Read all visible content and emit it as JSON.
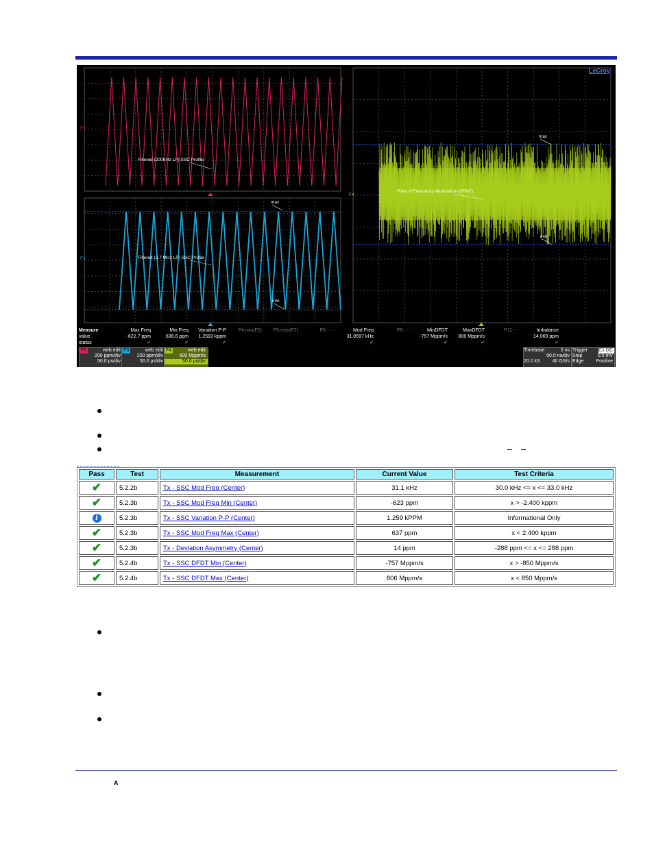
{
  "scope": {
    "brand": "LeCroy",
    "ref_labels": {
      "left_top": "F2",
      "left_bottom": "F3",
      "right": "F4"
    },
    "annotations": {
      "f2_profile": "Filtered (200KHz LP) SSC Profile",
      "f3_profile": "Filtered (3.7 MHz LP) SSC Profile",
      "f3_max": "max",
      "f3_min": "min",
      "f4_rate": "Rate of Frequency Modulation (dFMT)",
      "f4_max": "max",
      "f4_min": "min"
    },
    "measure": {
      "row_labels": [
        "Measure",
        "value",
        "status"
      ],
      "columns": [
        {
          "name": "Max Freq",
          "value": "-622.7 ppm",
          "status": "✔",
          "dim": false
        },
        {
          "name": "Min Freq",
          "value": "636.6 ppm",
          "status": "✔",
          "dim": false
        },
        {
          "name": "Variation P-P",
          "value": "1.2593 kppm",
          "status": "✔",
          "dim": false
        },
        {
          "name": "P4:min(F2)",
          "value": "",
          "status": "",
          "dim": true
        },
        {
          "name": "P5:max(F2)",
          "value": "",
          "status": "",
          "dim": true
        },
        {
          "name": "P6:- - -",
          "value": "",
          "status": "",
          "dim": true
        },
        {
          "name": "Mod Freq",
          "value": "31.0597 kHz",
          "status": "✔",
          "dim": false
        },
        {
          "name": "P8:- - -",
          "value": "",
          "status": "",
          "dim": true
        },
        {
          "name": "MinDFDT",
          "value": "-757 Mppm/s",
          "status": "✔",
          "dim": false
        },
        {
          "name": "MaxDFDT",
          "value": "806 Mppm/s",
          "status": "✔",
          "dim": false
        },
        {
          "name": "P11:- - -",
          "value": "",
          "status": "",
          "dim": true
        },
        {
          "name": "Imbalance",
          "value": "14.069 ppm",
          "status": "✔",
          "dim": false
        }
      ]
    },
    "channels": [
      {
        "tag": "F2",
        "mode": "web edit",
        "scale": "200 ppm/div",
        "time": "50.0 µs/div",
        "color": "#e0245c"
      },
      {
        "tag": "F3",
        "mode": "web edit",
        "scale": "200 ppm/div",
        "time": "50.0 µs/div",
        "color": "#1aa6d9"
      },
      {
        "tag": "F4",
        "mode": "web edit",
        "scale": "500 Mppm/s",
        "time": "50.0 µs/div",
        "color": "#a8cc1c"
      }
    ],
    "timebase": {
      "label": "Timebase",
      "offset": "0 ns",
      "div": "50.0 ns/div",
      "samples": "20.0 kS",
      "rate": "40 GS/s"
    },
    "trigger": {
      "label": "Trigger",
      "source": "C1 DC",
      "mode": "Stop",
      "level": "0.0 mV",
      "type": "Edge",
      "slope": "Positive"
    }
  },
  "table": {
    "headers": [
      "Pass",
      "Test",
      "Measurement",
      "Current Value",
      "Test Criteria"
    ],
    "rows": [
      {
        "pass": "check",
        "test": "5.2.2b",
        "measurement": "Tx - SSC Mod Freq (Center)",
        "value": "31.1 kHz",
        "criteria": "30.0 kHz <= x <= 33.0 kHz"
      },
      {
        "pass": "check",
        "test": "5.2.3b",
        "measurement": "Tx - SSC Mod Freq Min (Center)",
        "value": "-623 ppm",
        "criteria": "x > -2.400 kppm"
      },
      {
        "pass": "info",
        "test": "5.2.3b",
        "measurement": "Tx - SSC Variation P-P (Center)",
        "value": "1.259 kPPM",
        "criteria": "Informational Only"
      },
      {
        "pass": "check",
        "test": "5.2.3b",
        "measurement": "Tx - SSC Mod Freq Max (Center)",
        "value": "637 ppm",
        "criteria": "x < 2.400 kppm"
      },
      {
        "pass": "check",
        "test": "5.2.3b",
        "measurement": "Tx - Deviation Asymmetry (Center)",
        "value": "14 ppm",
        "criteria": "-288 ppm <= x <= 288 ppm"
      },
      {
        "pass": "check",
        "test": "5.2.4b",
        "measurement": "Tx - SSC DFDT Min (Center)",
        "value": "-757 Mppm/s",
        "criteria": "x > -850 Mppm/s"
      },
      {
        "pass": "check",
        "test": "5.2.4b",
        "measurement": "Tx - SSC DFDT Max (Center)",
        "value": "806 Mppm/s",
        "criteria": "x < 850 Mppm/s"
      }
    ]
  },
  "footer": {
    "letter": "A"
  }
}
